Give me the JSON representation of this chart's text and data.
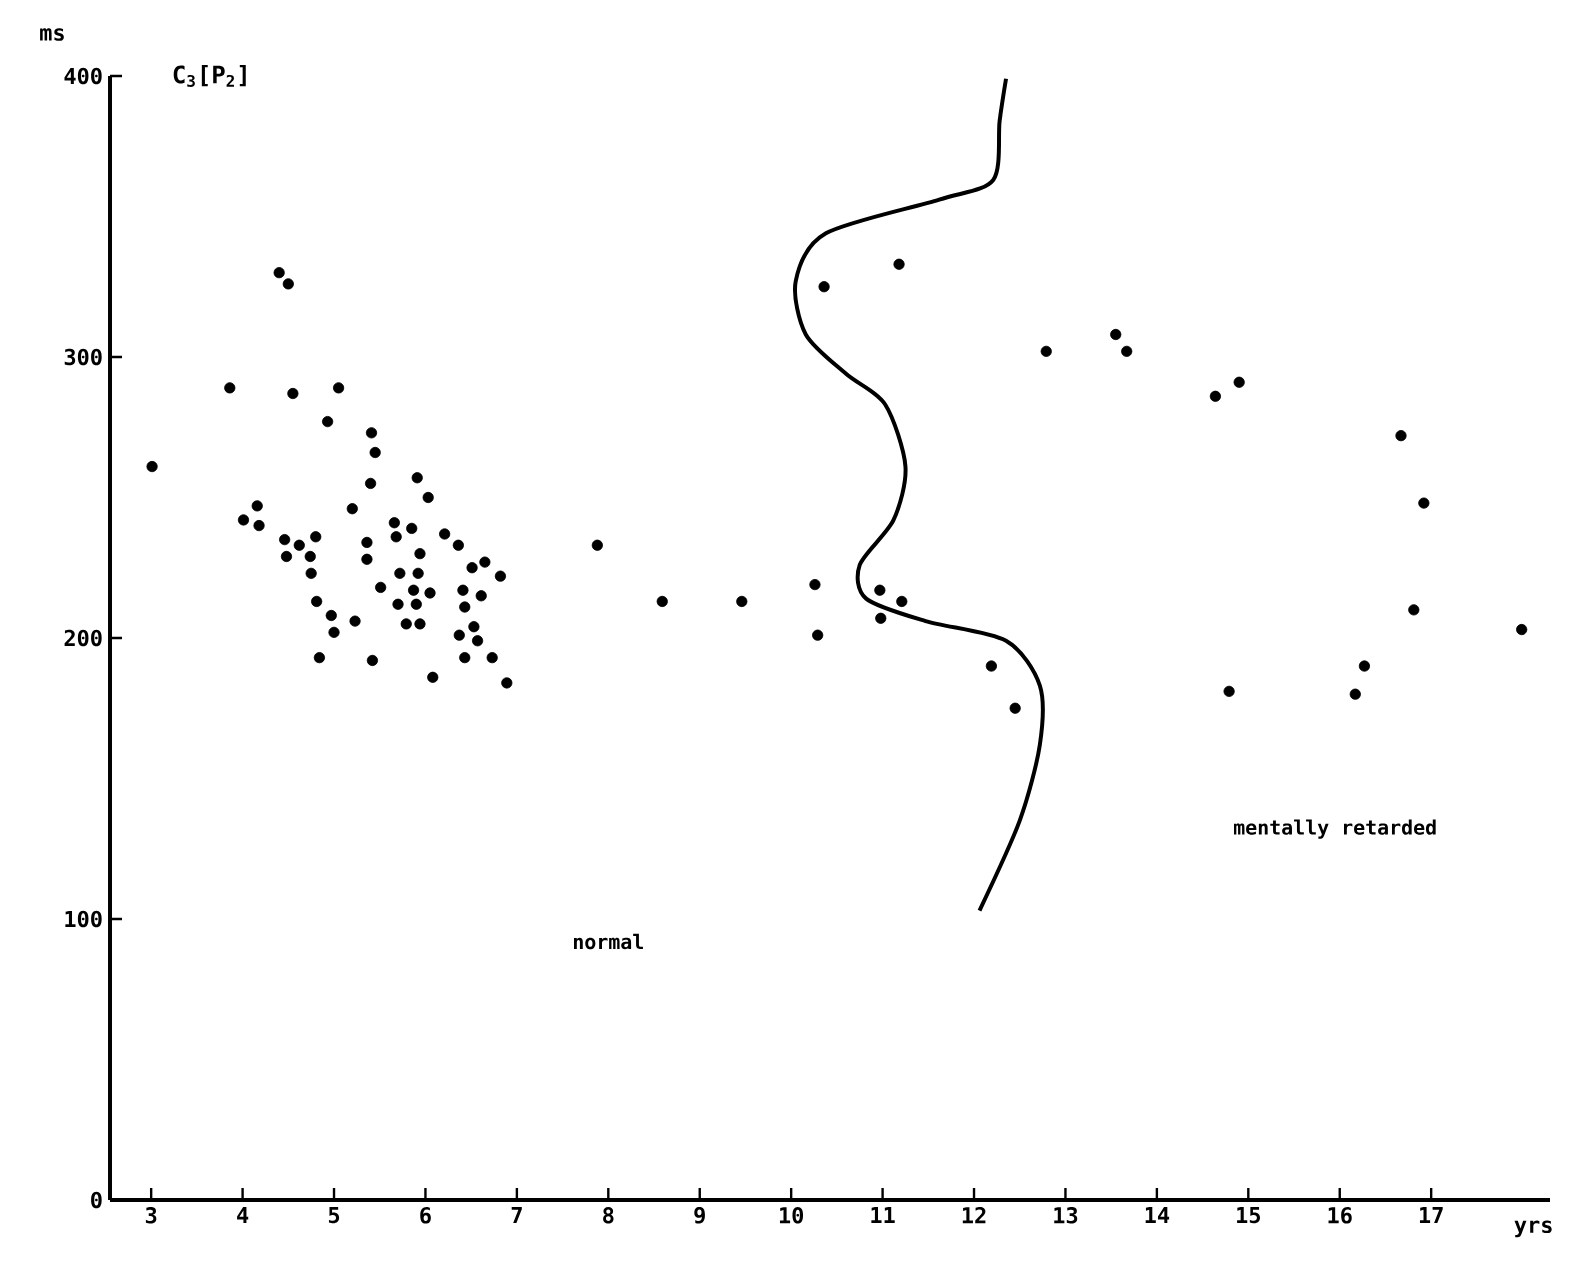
{
  "chart_data": {
    "type": "scatter",
    "title": "C$_{3}$[P$_{2}$]",
    "xlabel": "yrs",
    "ylabel": "ms",
    "annotations": [
      "normal",
      "mentally retarded"
    ],
    "xlim": [
      2.55,
      18.3
    ],
    "ylim": [
      0,
      400
    ],
    "xticks": [
      3,
      4,
      5,
      6,
      7,
      8,
      9,
      10,
      11,
      12,
      13,
      14,
      15,
      16,
      17
    ],
    "yticks": [
      0,
      100,
      200,
      300,
      400
    ],
    "series": [
      {
        "marker": "circle",
        "color": "#000000",
        "x": [
          3.86,
          4.55,
          5.05,
          4.93,
          3.01,
          5.41,
          5.45,
          5.4,
          5.91,
          6.03,
          4.16,
          4.01,
          4.18,
          5.2,
          5.66,
          5.68,
          5.85,
          6.21,
          6.36,
          4.46,
          4.62,
          4.8,
          4.48,
          4.74,
          5.36,
          5.36,
          5.94,
          6.51,
          6.65,
          6.82,
          4.75,
          5.72,
          5.92,
          5.51,
          5.87,
          6.05,
          6.41,
          6.61,
          4.81,
          5.7,
          5.9,
          6.43,
          4.97,
          5.23,
          5.79,
          5.94,
          6.53,
          5.0,
          6.37,
          6.57,
          4.84,
          5.42,
          6.43,
          6.73,
          6.08,
          6.89,
          4.4,
          4.5,
          10.36,
          11.18,
          12.79,
          7.88,
          8.59,
          9.46,
          10.26,
          10.29,
          10.97,
          10.98,
          11.21,
          12.19,
          12.45,
          13.55,
          13.67,
          14.64,
          14.9,
          16.67,
          16.92,
          16.81,
          17.99,
          16.27,
          16.17,
          14.79
        ],
        "values": [
          289,
          287,
          289,
          277,
          261,
          273,
          266,
          255,
          257,
          250,
          247,
          242,
          240,
          246,
          241,
          236,
          239,
          237,
          233,
          235,
          233,
          236,
          229,
          229,
          234,
          228,
          230,
          225,
          227,
          222,
          223,
          223,
          223,
          218,
          217,
          216,
          217,
          215,
          213,
          212,
          212,
          211,
          208,
          206,
          205,
          205,
          204,
          202,
          201,
          199,
          193,
          192,
          193,
          193,
          186,
          184,
          330,
          326,
          325,
          333,
          302,
          233,
          213,
          213,
          219,
          201,
          217,
          207,
          213,
          190,
          175,
          308,
          302,
          286,
          291,
          272,
          248,
          210,
          203,
          190,
          180,
          181
        ]
      },
      {
        "type": "line",
        "color": "#000000",
        "line_style": "solid",
        "x": [
          12.35,
          12.28,
          12.21,
          11.62,
          10.38,
          10.05,
          10.16,
          10.6,
          11.03,
          11.25,
          11.12,
          10.75,
          10.82,
          11.47,
          12.35,
          12.72,
          12.72,
          12.5,
          12.06
        ],
        "values": [
          399,
          384,
          363,
          356,
          344,
          327,
          308,
          294,
          283,
          261,
          242,
          226,
          214,
          206,
          199,
          183,
          162,
          135,
          103
        ]
      }
    ]
  }
}
